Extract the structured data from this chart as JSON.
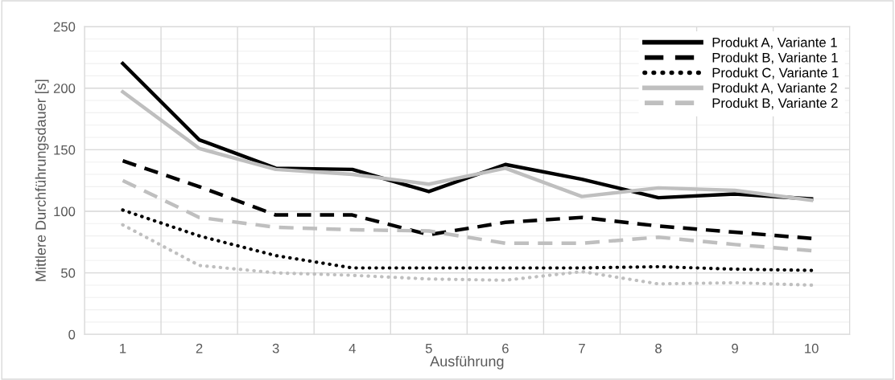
{
  "chart_data": {
    "type": "line",
    "xlabel": "Ausführung",
    "ylabel": "Mittlere Durchführungsdauer [s]",
    "categories": [
      "1",
      "2",
      "3",
      "4",
      "5",
      "6",
      "7",
      "8",
      "9",
      "10"
    ],
    "series": [
      {
        "name": "Produkt A, Variante 1",
        "color": "#000000",
        "line_style": "solid",
        "values": [
          220,
          158,
          135,
          134,
          116,
          138,
          126,
          111,
          114,
          110
        ]
      },
      {
        "name": "Produkt B, Variante 1",
        "color": "#000000",
        "line_style": "dashed",
        "values": [
          141,
          120,
          97,
          97,
          81,
          91,
          95,
          88,
          83,
          78
        ]
      },
      {
        "name": "Produkt C, Variante 1",
        "color": "#000000",
        "line_style": "dotted",
        "values": [
          101,
          80,
          64,
          54,
          54,
          54,
          54,
          55,
          53,
          52
        ]
      },
      {
        "name": "Produkt A, Variante 2",
        "color": "#bfbfbf",
        "line_style": "solid",
        "values": [
          197,
          151,
          134,
          130,
          122,
          135,
          112,
          119,
          117,
          109
        ]
      },
      {
        "name": "Produkt B, Variante 2",
        "color": "#bfbfbf",
        "line_style": "dashed",
        "values": [
          125,
          95,
          87,
          85,
          84,
          74,
          74,
          79,
          73,
          68
        ]
      },
      {
        "color": "#bfbfbf",
        "line_style": "dotted",
        "values": [
          89,
          56,
          50,
          48,
          45,
          44,
          51,
          41,
          42,
          40
        ]
      }
    ],
    "ylim": [
      0,
      250
    ],
    "yticks": [
      0,
      50,
      100,
      150,
      200,
      250
    ],
    "grid": true,
    "legend": "top right",
    "marker": "none"
  }
}
